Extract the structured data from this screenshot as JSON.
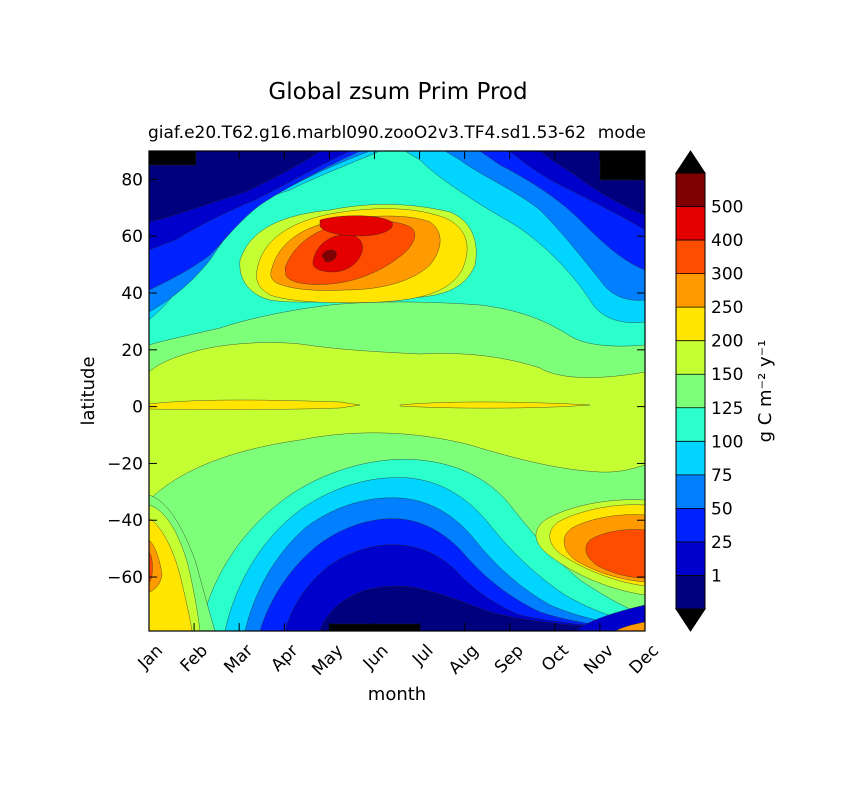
{
  "chart_data": {
    "type": "heatmap",
    "title": "Global zsum Prim Prod",
    "subtitle_left": "giaf.e20.T62.g16.marbl090.zooO2v3.TF4.sd1.53-62",
    "subtitle_right": "mode",
    "xlabel": "month",
    "ylabel": "latitude",
    "x_ticks": [
      "Jan",
      "Feb",
      "Mar",
      "Apr",
      "May",
      "Jun",
      "Jul",
      "Aug",
      "Sep",
      "Oct",
      "Nov",
      "Dec"
    ],
    "y_ticks": [
      80,
      60,
      40,
      20,
      0,
      -20,
      -40,
      -60
    ],
    "ylim": [
      -79,
      90
    ],
    "colorbar": {
      "label": "g C m⁻² y⁻¹",
      "extend": "both",
      "levels": [
        0,
        1,
        25,
        50,
        75,
        100,
        125,
        150,
        200,
        250,
        300,
        400,
        500,
        600
      ],
      "tick_labels": [
        "1",
        "25",
        "50",
        "75",
        "100",
        "125",
        "150",
        "200",
        "250",
        "300",
        "400",
        "500"
      ],
      "colors": [
        "#00007f",
        "#0000cc",
        "#0022ff",
        "#0080ff",
        "#00d4ff",
        "#2bffcb",
        "#7dff7a",
        "#c4ff33",
        "#ffe500",
        "#ff9a00",
        "#ff4d00",
        "#e50000",
        "#7f0000"
      ],
      "under_color": "#000000",
      "over_color": "#000000"
    },
    "grid": false
  }
}
